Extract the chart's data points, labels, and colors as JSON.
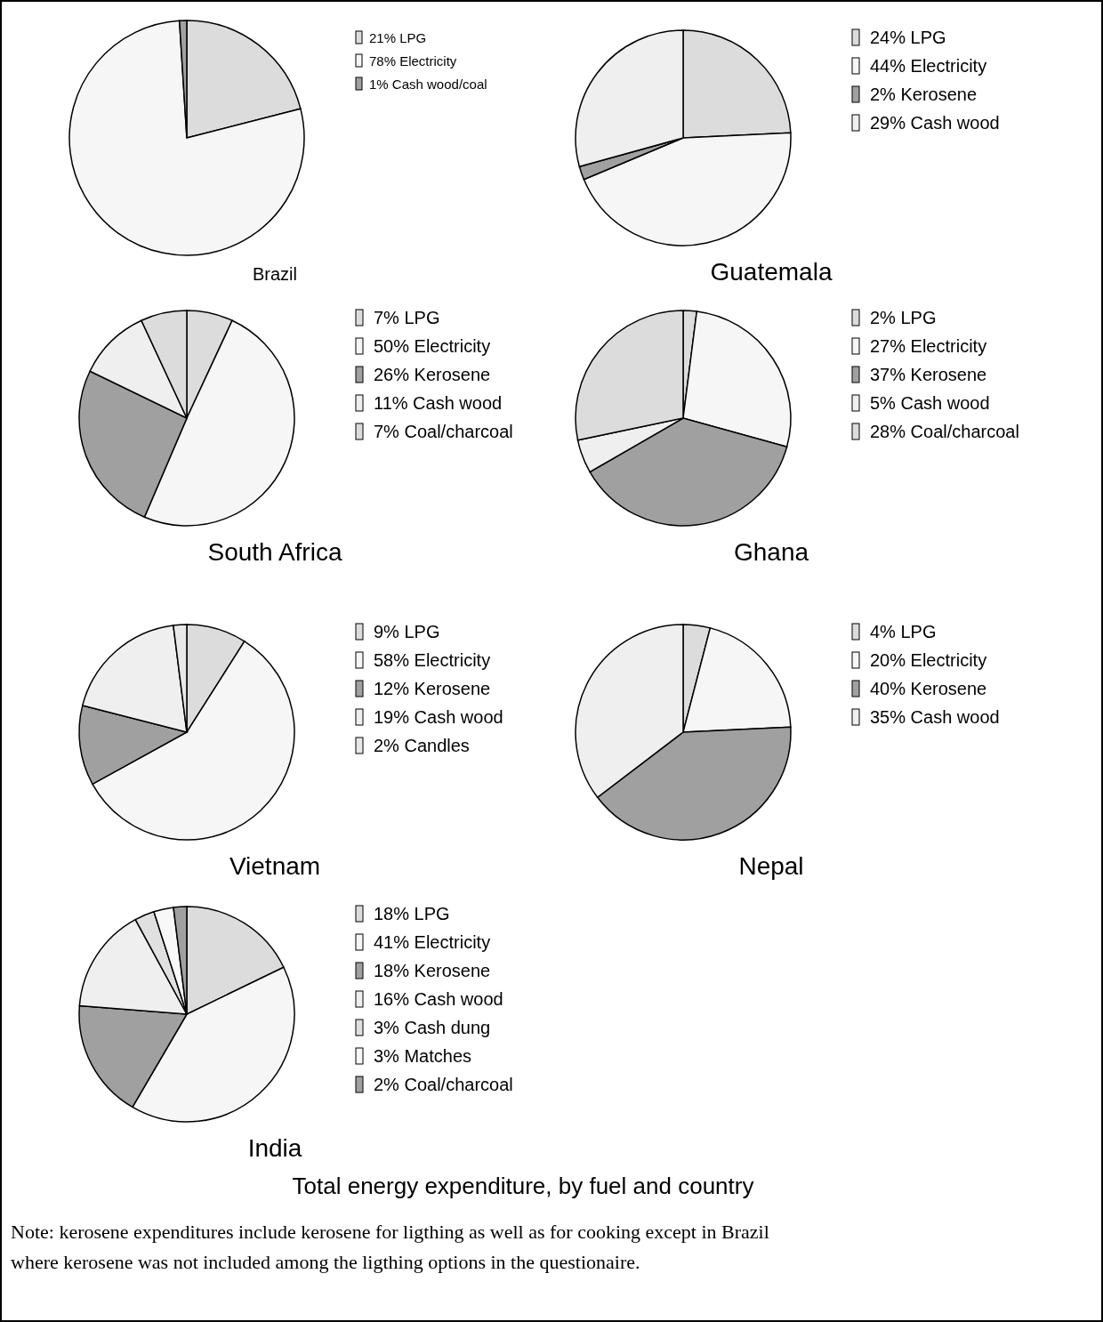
{
  "chart_data": [
    {
      "type": "pie",
      "title": "Brazil",
      "categories": [
        "LPG",
        "Electricity",
        "Cash wood/coal"
      ],
      "values": [
        21,
        78,
        1
      ],
      "value_labels": [
        "21%",
        "78%",
        "1%"
      ],
      "colors": [
        "#dcdcdc",
        "#f6f6f6",
        "#a0a0a0"
      ],
      "legend": "right"
    },
    {
      "type": "pie",
      "title": "Guatemala",
      "categories": [
        "LPG",
        "Electricity",
        "Kerosene",
        "Cash wood"
      ],
      "values": [
        24,
        44,
        2,
        29
      ],
      "value_labels": [
        "24%",
        "44%",
        "2%",
        "29%"
      ],
      "colors": [
        "#dcdcdc",
        "#f6f6f6",
        "#a0a0a0",
        "#efefef"
      ],
      "legend": "right"
    },
    {
      "type": "pie",
      "title": "South Africa",
      "categories": [
        "LPG",
        "Electricity",
        "Kerosene",
        "Cash wood",
        "Coal/charcoal"
      ],
      "values": [
        7,
        50,
        26,
        11,
        7
      ],
      "value_labels": [
        "7%",
        "50%",
        "26%",
        "11%",
        "7%"
      ],
      "colors": [
        "#dcdcdc",
        "#f6f6f6",
        "#a0a0a0",
        "#efefef",
        "#dcdcdc"
      ],
      "legend": "right"
    },
    {
      "type": "pie",
      "title": "Ghana",
      "categories": [
        "LPG",
        "Electricity",
        "Kerosene",
        "Cash wood",
        "Coal/charcoal"
      ],
      "values": [
        2,
        27,
        37,
        5,
        28
      ],
      "value_labels": [
        "2%",
        "27%",
        "37%",
        "5%",
        "28%"
      ],
      "colors": [
        "#dcdcdc",
        "#f6f6f6",
        "#a0a0a0",
        "#efefef",
        "#dcdcdc"
      ],
      "legend": "right"
    },
    {
      "type": "pie",
      "title": "Vietnam",
      "categories": [
        "LPG",
        "Electricity",
        "Kerosene",
        "Cash wood",
        "Candles"
      ],
      "values": [
        9,
        58,
        12,
        19,
        2
      ],
      "value_labels": [
        "9%",
        "58%",
        "12%",
        "19%",
        "2%"
      ],
      "colors": [
        "#dcdcdc",
        "#f6f6f6",
        "#a0a0a0",
        "#efefef",
        "#e8e8e8"
      ],
      "legend": "right"
    },
    {
      "type": "pie",
      "title": "Nepal",
      "categories": [
        "LPG",
        "Electricity",
        "Kerosene",
        "Cash wood"
      ],
      "values": [
        4,
        20,
        40,
        35
      ],
      "value_labels": [
        "4%",
        "20%",
        "40%",
        "35%"
      ],
      "colors": [
        "#dcdcdc",
        "#f6f6f6",
        "#a0a0a0",
        "#efefef"
      ],
      "legend": "right"
    },
    {
      "type": "pie",
      "title": "India",
      "categories": [
        "LPG",
        "Electricity",
        "Kerosene",
        "Cash wood",
        "Cash dung",
        "Matches",
        "Coal/charcoal"
      ],
      "values": [
        18,
        41,
        18,
        16,
        3,
        3,
        2
      ],
      "value_labels": [
        "18%",
        "41%",
        "18%",
        "16%",
        "3%",
        "3%",
        "2%"
      ],
      "colors": [
        "#dcdcdc",
        "#f6f6f6",
        "#a0a0a0",
        "#efefef",
        "#e0e0e0",
        "#f8f8f8",
        "#a0a0a0"
      ],
      "legend": "right",
      "annotations": [
        "Total energy expenditure, by fuel and country",
        "Note: kerosene expenditures include kerosene for ligthing as well as for cooking except in Brazil where kerosene was not included among the ligthing options in the questionaire."
      ]
    }
  ]
}
